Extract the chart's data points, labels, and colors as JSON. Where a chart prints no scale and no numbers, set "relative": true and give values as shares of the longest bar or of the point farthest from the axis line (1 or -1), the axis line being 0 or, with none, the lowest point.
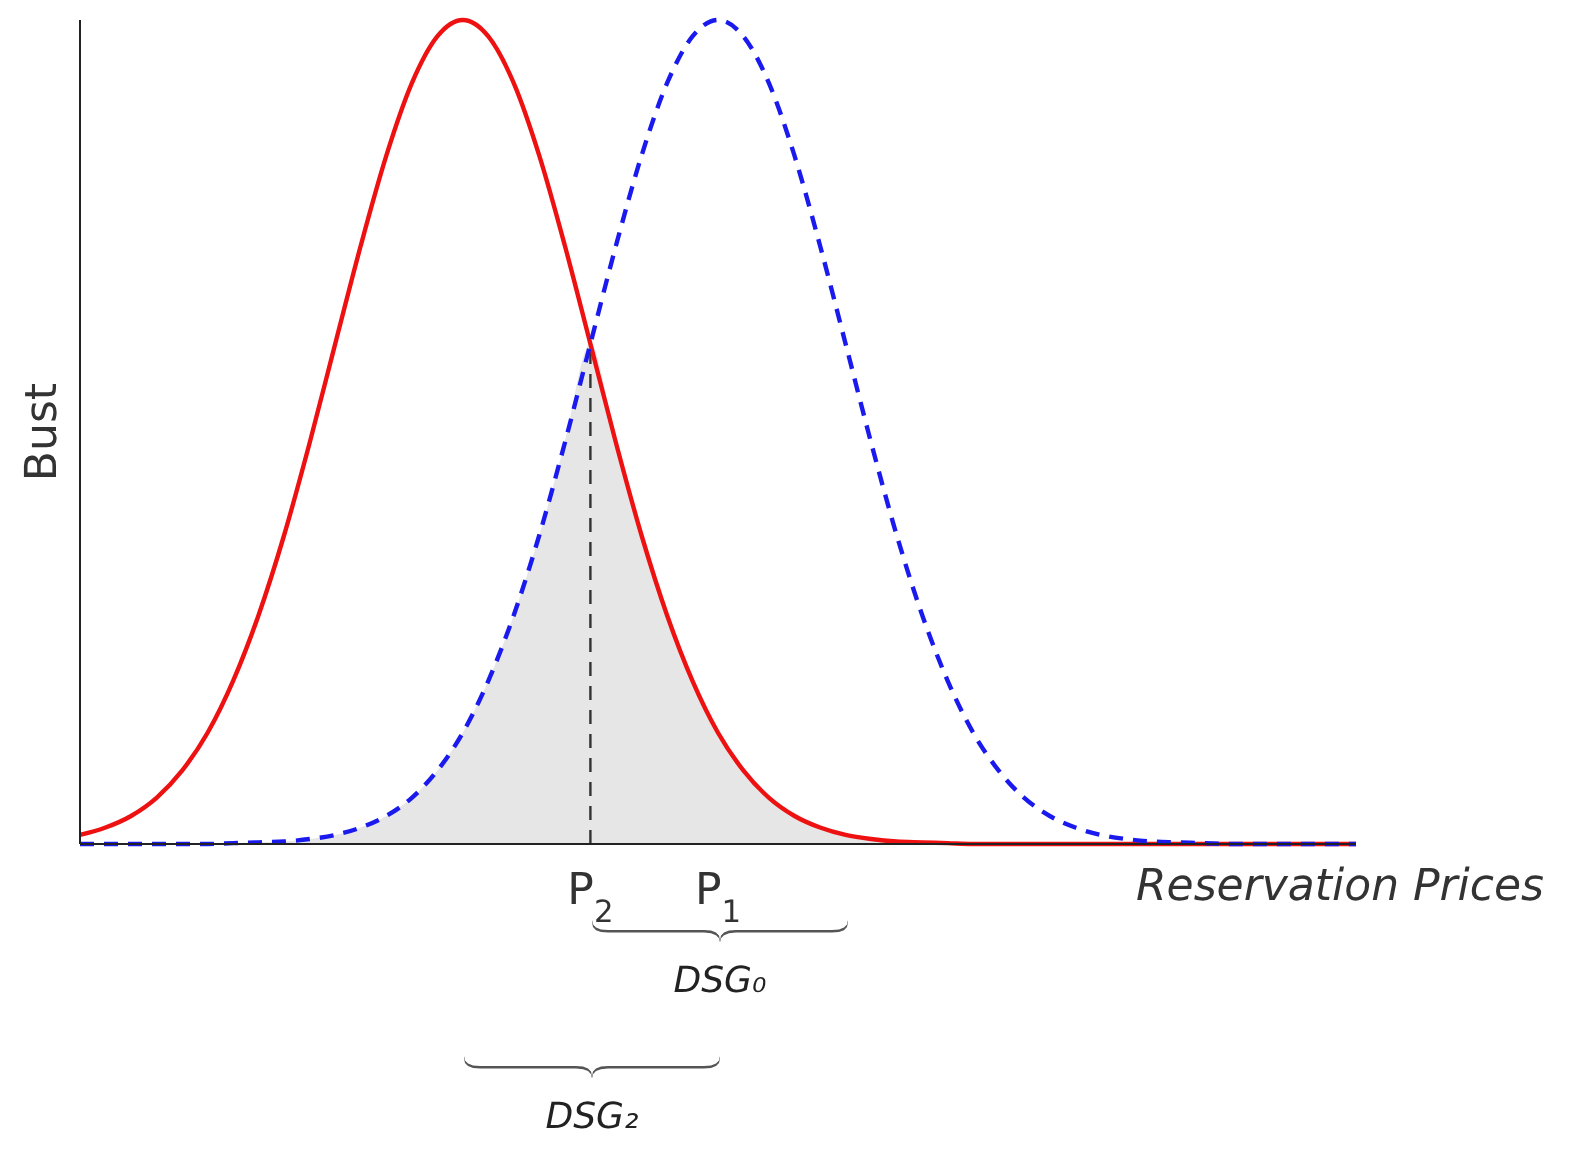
{
  "chart_data": {
    "type": "line",
    "relative": true,
    "xlabel": "Reservation Prices",
    "ylabel": "Bust",
    "categories": [
      null,
      null,
      null,
      null,
      null,
      null,
      null,
      null,
      null,
      null,
      null,
      null,
      null,
      null,
      null,
      null,
      null,
      null,
      null,
      null,
      "P$_{2}$",
      null,
      null,
      null,
      null,
      "P$_{1}$",
      null,
      null,
      null,
      null,
      null,
      null,
      null,
      null,
      null,
      null,
      null,
      null,
      null,
      null,
      null,
      null,
      null,
      null,
      null,
      null,
      null,
      null,
      null,
      null,
      null
    ],
    "series": [
      {
        "type": "area",
        "color": "#e6e6e6",
        "values": [
          0,
          0,
          0,
          0,
          0,
          0,
          0.001,
          0.002,
          0.003,
          0.006,
          0.011,
          0.02,
          0.034,
          0.056,
          0.089,
          0.135,
          0.198,
          0.278,
          0.375,
          0.487,
          0.607,
          0.487,
          0.375,
          0.278,
          0.198,
          0.135,
          0.089,
          0.056,
          0.034,
          0.02,
          0.011,
          0.006,
          0.003,
          0.002,
          0.001,
          0,
          0,
          0,
          0,
          0,
          0,
          0,
          0,
          0,
          0,
          0,
          0,
          0,
          0,
          0,
          0
        ]
      },
      {
        "color": "#ee1111",
        "line_style": "solid",
        "values": [
          0.011,
          0.02,
          0.034,
          0.056,
          0.089,
          0.135,
          0.198,
          0.278,
          0.375,
          0.487,
          0.607,
          0.726,
          0.835,
          0.923,
          0.98,
          1,
          0.98,
          0.923,
          0.835,
          0.726,
          0.607,
          0.487,
          0.375,
          0.278,
          0.198,
          0.135,
          0.089,
          0.056,
          0.034,
          0.02,
          0.011,
          0.006,
          0.003,
          0.002,
          0.001,
          0,
          0,
          0,
          0,
          0,
          0,
          0,
          0,
          0,
          0,
          0,
          0,
          0,
          0,
          0,
          0
        ]
      },
      {
        "color": "#1a1aee",
        "line_style": "dashed",
        "values": [
          0,
          0,
          0,
          0,
          0,
          0,
          0.001,
          0.002,
          0.003,
          0.006,
          0.011,
          0.02,
          0.034,
          0.056,
          0.089,
          0.135,
          0.198,
          0.278,
          0.375,
          0.487,
          0.607,
          0.726,
          0.835,
          0.923,
          0.98,
          1,
          0.98,
          0.923,
          0.835,
          0.726,
          0.607,
          0.487,
          0.375,
          0.278,
          0.198,
          0.135,
          0.089,
          0.056,
          0.034,
          0.02,
          0.011,
          0.006,
          0.003,
          0.002,
          0.001,
          0,
          0,
          0,
          0,
          0,
          0
        ]
      }
    ],
    "ref_lines": [
      {
        "axis": "x",
        "value": "P$_{2}$",
        "color": "#333333",
        "line_style": "dashed"
      }
    ],
    "annotations": [
      "DSG₀",
      "DSG₂"
    ],
    "grid": false
  }
}
